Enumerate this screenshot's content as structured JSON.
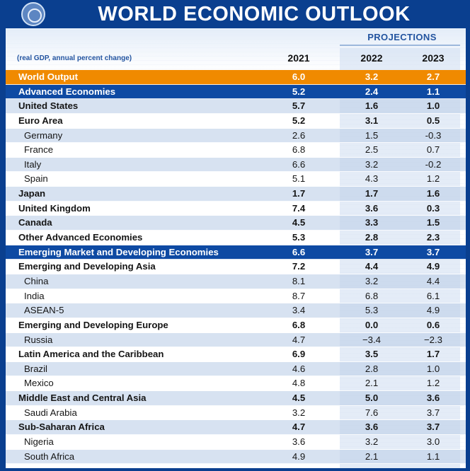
{
  "header": {
    "title": "WORLD ECONOMIC OUTLOOK",
    "projections_label": "PROJECTIONS",
    "note": "(real GDP, annual percent change)",
    "years": [
      "2021",
      "2022",
      "2023"
    ]
  },
  "colors": {
    "background": "#0a3f8f",
    "world_row": "#f08a00",
    "group_row": "#0e4aa3",
    "shaded_row": "#d7e2f1",
    "projections_text": "#2354a0"
  },
  "rows": [
    {
      "label": "World Output",
      "v2021": "6.0",
      "v2022": "3.2",
      "v2023": "2.7",
      "kind": "world",
      "indent": 0
    },
    {
      "label": "Advanced Economies",
      "v2021": "5.2",
      "v2022": "2.4",
      "v2023": "1.1",
      "kind": "group",
      "indent": 0
    },
    {
      "label": "United States",
      "v2021": "5.7",
      "v2022": "1.6",
      "v2023": "1.0",
      "kind": "item",
      "indent": 0
    },
    {
      "label": "Euro Area",
      "v2021": "5.2",
      "v2022": "3.1",
      "v2023": "0.5",
      "kind": "item",
      "indent": 0
    },
    {
      "label": "Germany",
      "v2021": "2.6",
      "v2022": "1.5",
      "v2023": "-0.3",
      "kind": "item",
      "indent": 1
    },
    {
      "label": "France",
      "v2021": "6.8",
      "v2022": "2.5",
      "v2023": "0.7",
      "kind": "item",
      "indent": 1
    },
    {
      "label": "Italy",
      "v2021": "6.6",
      "v2022": "3.2",
      "v2023": "-0.2",
      "kind": "item",
      "indent": 1
    },
    {
      "label": "Spain",
      "v2021": "5.1",
      "v2022": "4.3",
      "v2023": "1.2",
      "kind": "item",
      "indent": 1
    },
    {
      "label": "Japan",
      "v2021": "1.7",
      "v2022": "1.7",
      "v2023": "1.6",
      "kind": "item",
      "indent": 0
    },
    {
      "label": "United Kingdom",
      "v2021": "7.4",
      "v2022": "3.6",
      "v2023": "0.3",
      "kind": "item",
      "indent": 0
    },
    {
      "label": "Canada",
      "v2021": "4.5",
      "v2022": "3.3",
      "v2023": "1.5",
      "kind": "item",
      "indent": 0
    },
    {
      "label": "Other Advanced Economies",
      "v2021": "5.3",
      "v2022": "2.8",
      "v2023": "2.3",
      "kind": "item",
      "indent": 0
    },
    {
      "label": "Emerging Market and Developing Economies",
      "v2021": "6.6",
      "v2022": "3.7",
      "v2023": "3.7",
      "kind": "group",
      "indent": 0
    },
    {
      "label": "Emerging and Developing Asia",
      "v2021": "7.2",
      "v2022": "4.4",
      "v2023": "4.9",
      "kind": "item",
      "indent": 0
    },
    {
      "label": "China",
      "v2021": "8.1",
      "v2022": "3.2",
      "v2023": "4.4",
      "kind": "item",
      "indent": 1
    },
    {
      "label": "India",
      "v2021": "8.7",
      "v2022": "6.8",
      "v2023": "6.1",
      "kind": "item",
      "indent": 1
    },
    {
      "label": "ASEAN-5",
      "v2021": "3.4",
      "v2022": "5.3",
      "v2023": "4.9",
      "kind": "item",
      "indent": 1
    },
    {
      "label": "Emerging and Developing Europe",
      "v2021": "6.8",
      "v2022": "0.0",
      "v2023": "0.6",
      "kind": "item",
      "indent": 0
    },
    {
      "label": "Russia",
      "v2021": "4.7",
      "v2022": "−3.4",
      "v2023": "−2.3",
      "kind": "item",
      "indent": 1
    },
    {
      "label": "Latin America and the Caribbean",
      "v2021": "6.9",
      "v2022": "3.5",
      "v2023": "1.7",
      "kind": "item",
      "indent": 0
    },
    {
      "label": "Brazil",
      "v2021": "4.6",
      "v2022": "2.8",
      "v2023": "1.0",
      "kind": "item",
      "indent": 1
    },
    {
      "label": "Mexico",
      "v2021": "4.8",
      "v2022": "2.1",
      "v2023": "1.2",
      "kind": "item",
      "indent": 1
    },
    {
      "label": "Middle East and Central Asia",
      "v2021": "4.5",
      "v2022": "5.0",
      "v2023": "3.6",
      "kind": "item",
      "indent": 0
    },
    {
      "label": "Saudi Arabia",
      "v2021": "3.2",
      "v2022": "7.6",
      "v2023": "3.7",
      "kind": "item",
      "indent": 1
    },
    {
      "label": "Sub-Saharan Africa",
      "v2021": "4.7",
      "v2022": "3.6",
      "v2023": "3.7",
      "kind": "item",
      "indent": 0
    },
    {
      "label": "Nigeria",
      "v2021": "3.6",
      "v2022": "3.2",
      "v2023": "3.0",
      "kind": "item",
      "indent": 1
    },
    {
      "label": "South Africa",
      "v2021": "4.9",
      "v2022": "2.1",
      "v2023": "1.1",
      "kind": "item",
      "indent": 1
    }
  ]
}
